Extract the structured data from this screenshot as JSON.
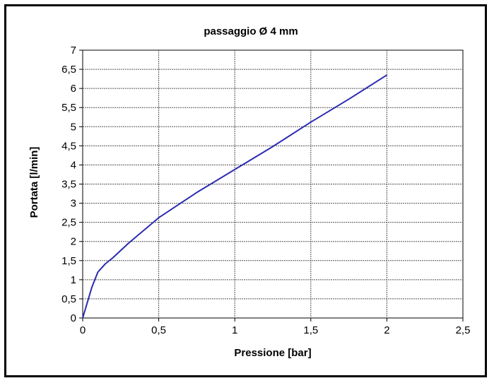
{
  "chart_data": {
    "type": "line",
    "title": "passaggio Ø 4 mm",
    "xlabel": "Pressione [bar]",
    "ylabel": "Portata [l/min]",
    "xlim": [
      0,
      2.5
    ],
    "ylim": [
      0,
      7
    ],
    "x_ticks": [
      "0",
      "0,5",
      "1",
      "1,5",
      "2",
      "2,5"
    ],
    "y_ticks": [
      "0",
      "0,5",
      "1",
      "1,5",
      "2",
      "2,5",
      "3",
      "3,5",
      "4",
      "4,5",
      "5",
      "5,5",
      "6",
      "6,5",
      "7"
    ],
    "grid": true,
    "legend": "none",
    "series": [
      {
        "color": "#2b2bb0",
        "x": [
          0,
          0.03,
          0.06,
          0.1,
          0.15,
          0.2,
          0.3,
          0.5,
          0.75,
          1.0,
          1.25,
          1.5,
          1.75,
          2.0
        ],
        "y": [
          0,
          0.4,
          0.8,
          1.2,
          1.42,
          1.58,
          1.95,
          2.62,
          3.28,
          3.88,
          4.48,
          5.12,
          5.72,
          6.35
        ]
      }
    ]
  }
}
